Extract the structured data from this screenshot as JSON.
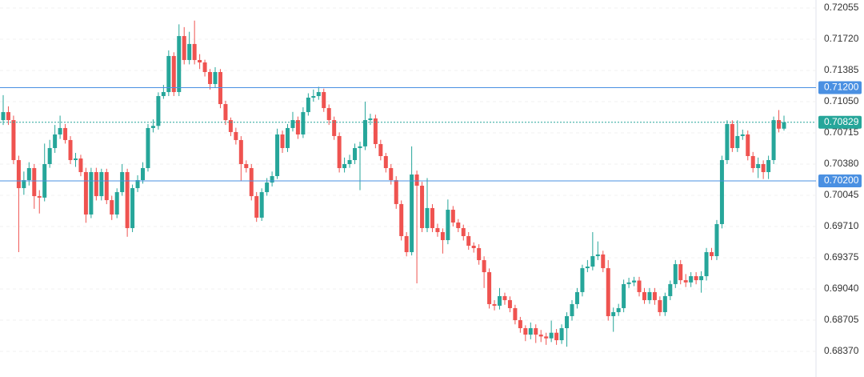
{
  "chart_data": {
    "type": "candlestick",
    "up_color": "#26a69a",
    "down_color": "#ef5350",
    "grid": true,
    "ylim": [
      0.68095,
      0.72141
    ],
    "yticks": [
      0.72055,
      {
        "value": 0.7172,
        "label": "0.71720"
      },
      0.71385,
      {
        "value": 0.7105,
        "label": "0.71050"
      },
      0.70715,
      {
        "value": 0.7038,
        "label": "0.70380"
      },
      0.70045,
      {
        "value": 0.6971,
        "label": "0.69710"
      },
      0.69375,
      {
        "value": 0.6904,
        "label": "0.69040"
      },
      0.68705,
      {
        "value": 0.6837,
        "label": "0.68370"
      }
    ],
    "hlines": [
      {
        "value": 0.712,
        "label": "0.71200",
        "color": "#4a90e2"
      },
      {
        "value": 0.702,
        "label": "0.70200",
        "color": "#4a90e2"
      }
    ],
    "last_price": {
      "value": 0.70829,
      "label": "0.70829",
      "color": "#26a69a"
    },
    "open": [
      0.70852,
      0.70938,
      0.70852,
      0.70423,
      0.70122,
      0.70208,
      0.70337,
      0.70036,
      0.7002,
      0.7038,
      0.70552,
      0.70698,
      0.70767,
      0.70638,
      0.70423,
      0.7044,
      0.70294,
      0.69839,
      0.70294,
      0.70036,
      0.70294,
      0.69993,
      0.69839,
      0.70079,
      0.70294,
      0.69693,
      0.70122,
      0.70208,
      0.70337,
      0.70767,
      0.7079,
      0.7111,
      0.71153,
      0.7154,
      0.71153,
      0.71754,
      0.71497,
      0.71669,
      0.71497,
      0.71471,
      0.71368,
      0.71239,
      0.71368,
      0.71024,
      0.70852,
      0.70724,
      0.70638,
      0.7038,
      0.70337,
      0.70036,
      0.69805,
      0.70079,
      0.70182,
      0.70251,
      0.70698,
      0.70552,
      0.70767,
      0.70852,
      0.70698,
      0.70938,
      0.71093,
      0.7111,
      0.71153,
      0.70981,
      0.70852,
      0.70681,
      0.70337,
      0.7038,
      0.70423,
      0.70552,
      0.7057,
      0.70852,
      0.7087,
      0.70595,
      0.70466,
      0.70337,
      0.70208,
      0.69951,
      0.69607,
      0.69435,
      0.70268,
      0.70148,
      0.69693,
      0.69908,
      0.69693,
      0.6965,
      0.69564,
      0.6989,
      0.69753,
      0.69693,
      0.69607,
      0.69504,
      0.69478,
      0.69349,
      0.6922,
      0.68877,
      0.6886,
      0.68963,
      0.6892,
      0.68834,
      0.68705,
      0.68619,
      0.6855,
      0.68619,
      0.6855,
      0.6853,
      0.6851,
      0.6857,
      0.6849,
      0.68619,
      0.68748,
      0.68877,
      0.69006,
      0.69263,
      0.6928,
      0.69392,
      0.6941,
      0.69263,
      0.68748,
      0.68791,
      0.68834,
      0.69092,
      0.6911,
      0.6913,
      0.69006,
      0.6892,
      0.69006,
      0.6892,
      0.68791,
      0.68963,
      0.69092,
      0.69306,
      0.69134,
      0.6911,
      0.69177,
      0.69134,
      0.69177,
      0.69435,
      0.69392,
      0.69736,
      0.70423,
      0.7081,
      0.70552,
      0.70681,
      0.70698,
      0.70466,
      0.70337,
      0.7038,
      0.70294,
      0.70423,
      0.70852,
      0.7076
    ],
    "high": [
      0.7112,
      0.71,
      0.709,
      0.7047,
      0.703,
      0.704,
      0.7038,
      0.701,
      0.706,
      0.7064,
      0.708,
      0.709,
      0.7081,
      0.7068,
      0.705,
      0.7048,
      0.7034,
      0.7034,
      0.7034,
      0.7033,
      0.7033,
      0.7004,
      0.7012,
      0.7038,
      0.7033,
      0.7016,
      0.7026,
      0.704,
      0.7081,
      0.7086,
      0.7115,
      0.7123,
      0.716,
      0.7158,
      0.7188,
      0.7185,
      0.718,
      0.7192,
      0.7156,
      0.715,
      0.714,
      0.7142,
      0.714,
      0.7106,
      0.7088,
      0.7077,
      0.7068,
      0.7042,
      0.7038,
      0.7008,
      0.7012,
      0.7023,
      0.703,
      0.7076,
      0.7074,
      0.7081,
      0.7094,
      0.7089,
      0.7099,
      0.7114,
      0.7118,
      0.7121,
      0.7119,
      0.7102,
      0.7089,
      0.7072,
      0.7045,
      0.7048,
      0.706,
      0.7062,
      0.7105,
      0.7092,
      0.7091,
      0.7064,
      0.705,
      0.7038,
      0.7025,
      0.6999,
      0.6965,
      0.7057,
      0.7031,
      0.7019,
      0.7023,
      0.6995,
      0.6974,
      0.6969,
      0.7,
      0.6993,
      0.6979,
      0.6973,
      0.6965,
      0.6954,
      0.6952,
      0.6939,
      0.6926,
      0.6892,
      0.6905,
      0.69,
      0.6896,
      0.6887,
      0.6874,
      0.6865,
      0.6868,
      0.6866,
      0.686,
      0.6857,
      0.687,
      0.6861,
      0.6866,
      0.6879,
      0.6892,
      0.6905,
      0.693,
      0.6935,
      0.6965,
      0.6955,
      0.6945,
      0.6935,
      0.6884,
      0.6888,
      0.6914,
      0.6916,
      0.6917,
      0.6917,
      0.6905,
      0.6905,
      0.6905,
      0.6896,
      0.69,
      0.6913,
      0.6935,
      0.6935,
      0.692,
      0.6922,
      0.6922,
      0.6923,
      0.6948,
      0.6948,
      0.6978,
      0.7047,
      0.7085,
      0.7085,
      0.7085,
      0.7075,
      0.7074,
      0.7051,
      0.7045,
      0.7042,
      0.7047,
      0.7089,
      0.7096,
      0.709
    ],
    "low": [
      0.708,
      0.708,
      0.7038,
      0.69435,
      0.7005,
      0.7015,
      0.699,
      0.6985,
      0.6998,
      0.7034,
      0.705,
      0.7065,
      0.706,
      0.7038,
      0.7035,
      0.7025,
      0.6975,
      0.698,
      0.6999,
      0.6999,
      0.6995,
      0.6978,
      0.698,
      0.7004,
      0.696,
      0.6965,
      0.7008,
      0.7017,
      0.703,
      0.7072,
      0.7075,
      0.7108,
      0.7111,
      0.7111,
      0.7111,
      0.7145,
      0.7145,
      0.7145,
      0.714,
      0.7132,
      0.7118,
      0.712,
      0.7098,
      0.708,
      0.7068,
      0.7059,
      0.702,
      0.7029,
      0.6999,
      0.6976,
      0.6977,
      0.7004,
      0.7014,
      0.7022,
      0.705,
      0.7051,
      0.7073,
      0.7065,
      0.7066,
      0.709,
      0.7105,
      0.7107,
      0.7094,
      0.708,
      0.7064,
      0.7029,
      0.7029,
      0.7034,
      0.7038,
      0.701,
      0.7053,
      0.708,
      0.7055,
      0.7042,
      0.7029,
      0.7016,
      0.699,
      0.6956,
      0.6939,
      0.694,
      0.691,
      0.6965,
      0.6965,
      0.6965,
      0.696,
      0.6942,
      0.6952,
      0.6971,
      0.6965,
      0.6956,
      0.6946,
      0.6943,
      0.693,
      0.6905,
      0.6883,
      0.6881,
      0.6882,
      0.6887,
      0.6879,
      0.6866,
      0.6857,
      0.6848,
      0.685,
      0.6846,
      0.6847,
      0.6844,
      0.6847,
      0.6844,
      0.6845,
      0.6842,
      0.687,
      0.6883,
      0.6896,
      0.6922,
      0.6924,
      0.6935,
      0.6922,
      0.687,
      0.6858,
      0.6875,
      0.6879,
      0.6905,
      0.6907,
      0.6896,
      0.6888,
      0.6888,
      0.6887,
      0.6875,
      0.6875,
      0.6892,
      0.6905,
      0.6909,
      0.6906,
      0.6906,
      0.6909,
      0.69,
      0.6913,
      0.6935,
      0.6935,
      0.6969,
      0.7038,
      0.7051,
      0.7051,
      0.7064,
      0.7042,
      0.7029,
      0.7023,
      0.7022,
      0.7022,
      0.7038,
      0.7072,
      0.7074
    ],
    "close": [
      0.70938,
      0.70852,
      0.70423,
      0.70122,
      0.70208,
      0.70337,
      0.70036,
      0.7002,
      0.7038,
      0.70552,
      0.70698,
      0.70767,
      0.70638,
      0.70423,
      0.7044,
      0.70294,
      0.69839,
      0.70294,
      0.70036,
      0.70294,
      0.69993,
      0.69839,
      0.70079,
      0.70294,
      0.69693,
      0.70122,
      0.70208,
      0.70337,
      0.70767,
      0.7079,
      0.7111,
      0.71153,
      0.7154,
      0.71153,
      0.71754,
      0.71497,
      0.71669,
      0.71497,
      0.71471,
      0.71368,
      0.71239,
      0.71368,
      0.71024,
      0.70852,
      0.70724,
      0.70638,
      0.7038,
      0.70337,
      0.70036,
      0.69805,
      0.70079,
      0.70182,
      0.70251,
      0.70698,
      0.70552,
      0.70767,
      0.70852,
      0.70698,
      0.70938,
      0.71093,
      0.7111,
      0.71153,
      0.70981,
      0.70852,
      0.70681,
      0.70337,
      0.7038,
      0.70423,
      0.70552,
      0.7057,
      0.70852,
      0.7087,
      0.70595,
      0.70466,
      0.70337,
      0.70208,
      0.69951,
      0.69607,
      0.69435,
      0.70268,
      0.70148,
      0.69693,
      0.69908,
      0.69693,
      0.6965,
      0.69564,
      0.6989,
      0.69753,
      0.69693,
      0.69607,
      0.69504,
      0.69478,
      0.69349,
      0.6922,
      0.68877,
      0.6886,
      0.68963,
      0.6892,
      0.68834,
      0.68705,
      0.68619,
      0.6855,
      0.68619,
      0.6855,
      0.6853,
      0.6851,
      0.6857,
      0.6849,
      0.68619,
      0.68748,
      0.68877,
      0.69006,
      0.69263,
      0.6928,
      0.69392,
      0.6941,
      0.69263,
      0.68748,
      0.68791,
      0.68834,
      0.69092,
      0.6911,
      0.6913,
      0.69006,
      0.6892,
      0.69006,
      0.6892,
      0.68791,
      0.68963,
      0.69092,
      0.69306,
      0.69134,
      0.6911,
      0.69177,
      0.69134,
      0.69177,
      0.69435,
      0.69392,
      0.69736,
      0.70423,
      0.7081,
      0.70552,
      0.70681,
      0.70698,
      0.70466,
      0.70337,
      0.7038,
      0.70294,
      0.70423,
      0.70852,
      0.7076,
      0.70829
    ]
  }
}
